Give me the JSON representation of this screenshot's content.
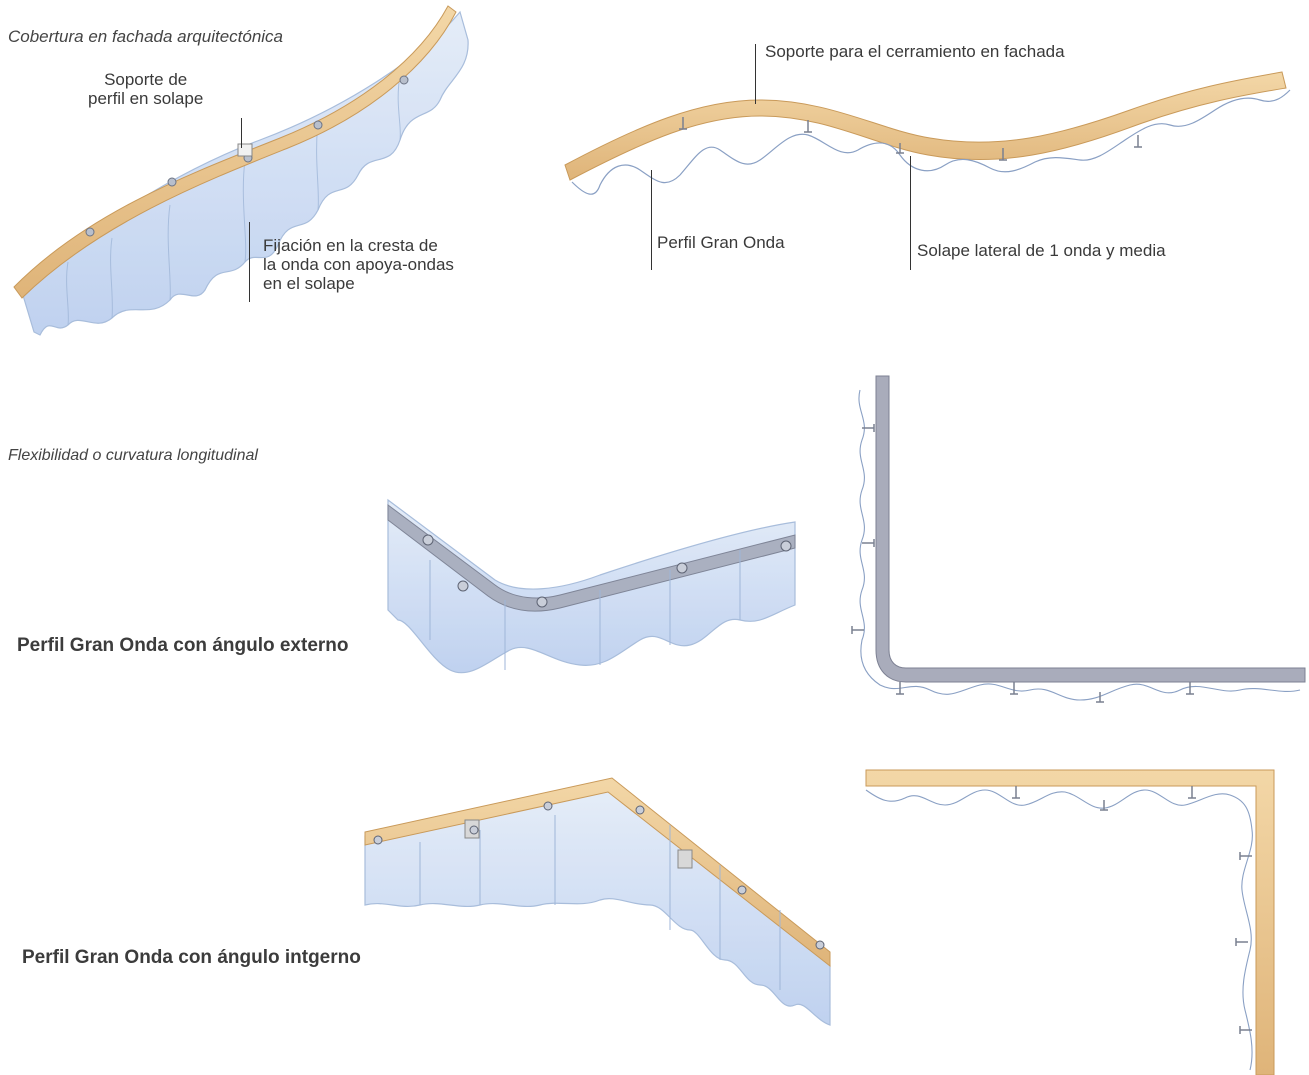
{
  "section_titles": {
    "fachada": "Cobertura en fachada arquitectónica",
    "flexibilidad": "Flexibilidad o curvatura longitudinal"
  },
  "labels": {
    "soporte_perfil_solape": "Soporte de\nperfil en solape",
    "fijacion_cresta": "Fijación en la cresta de\nla onda con apoya-ondas\nen el solape",
    "soporte_cerramiento": "Soporte para el cerramiento en fachada",
    "perfil_gran_onda": "Perfil Gran Onda",
    "solape_lateral": "Solape lateral de 1 onda y media"
  },
  "captions": {
    "angulo_externo": "Perfil Gran Onda con ángulo externo",
    "angulo_interno": "Perfil Gran Onda con ángulo intgerno"
  },
  "colors": {
    "wood": "#e9c690",
    "wood_edge": "#c99a5a",
    "panel": "#c7d8f1",
    "panel_edge": "#9fb6d8",
    "steel": "#a9acbb",
    "wave_line": "#8aa0c4"
  }
}
